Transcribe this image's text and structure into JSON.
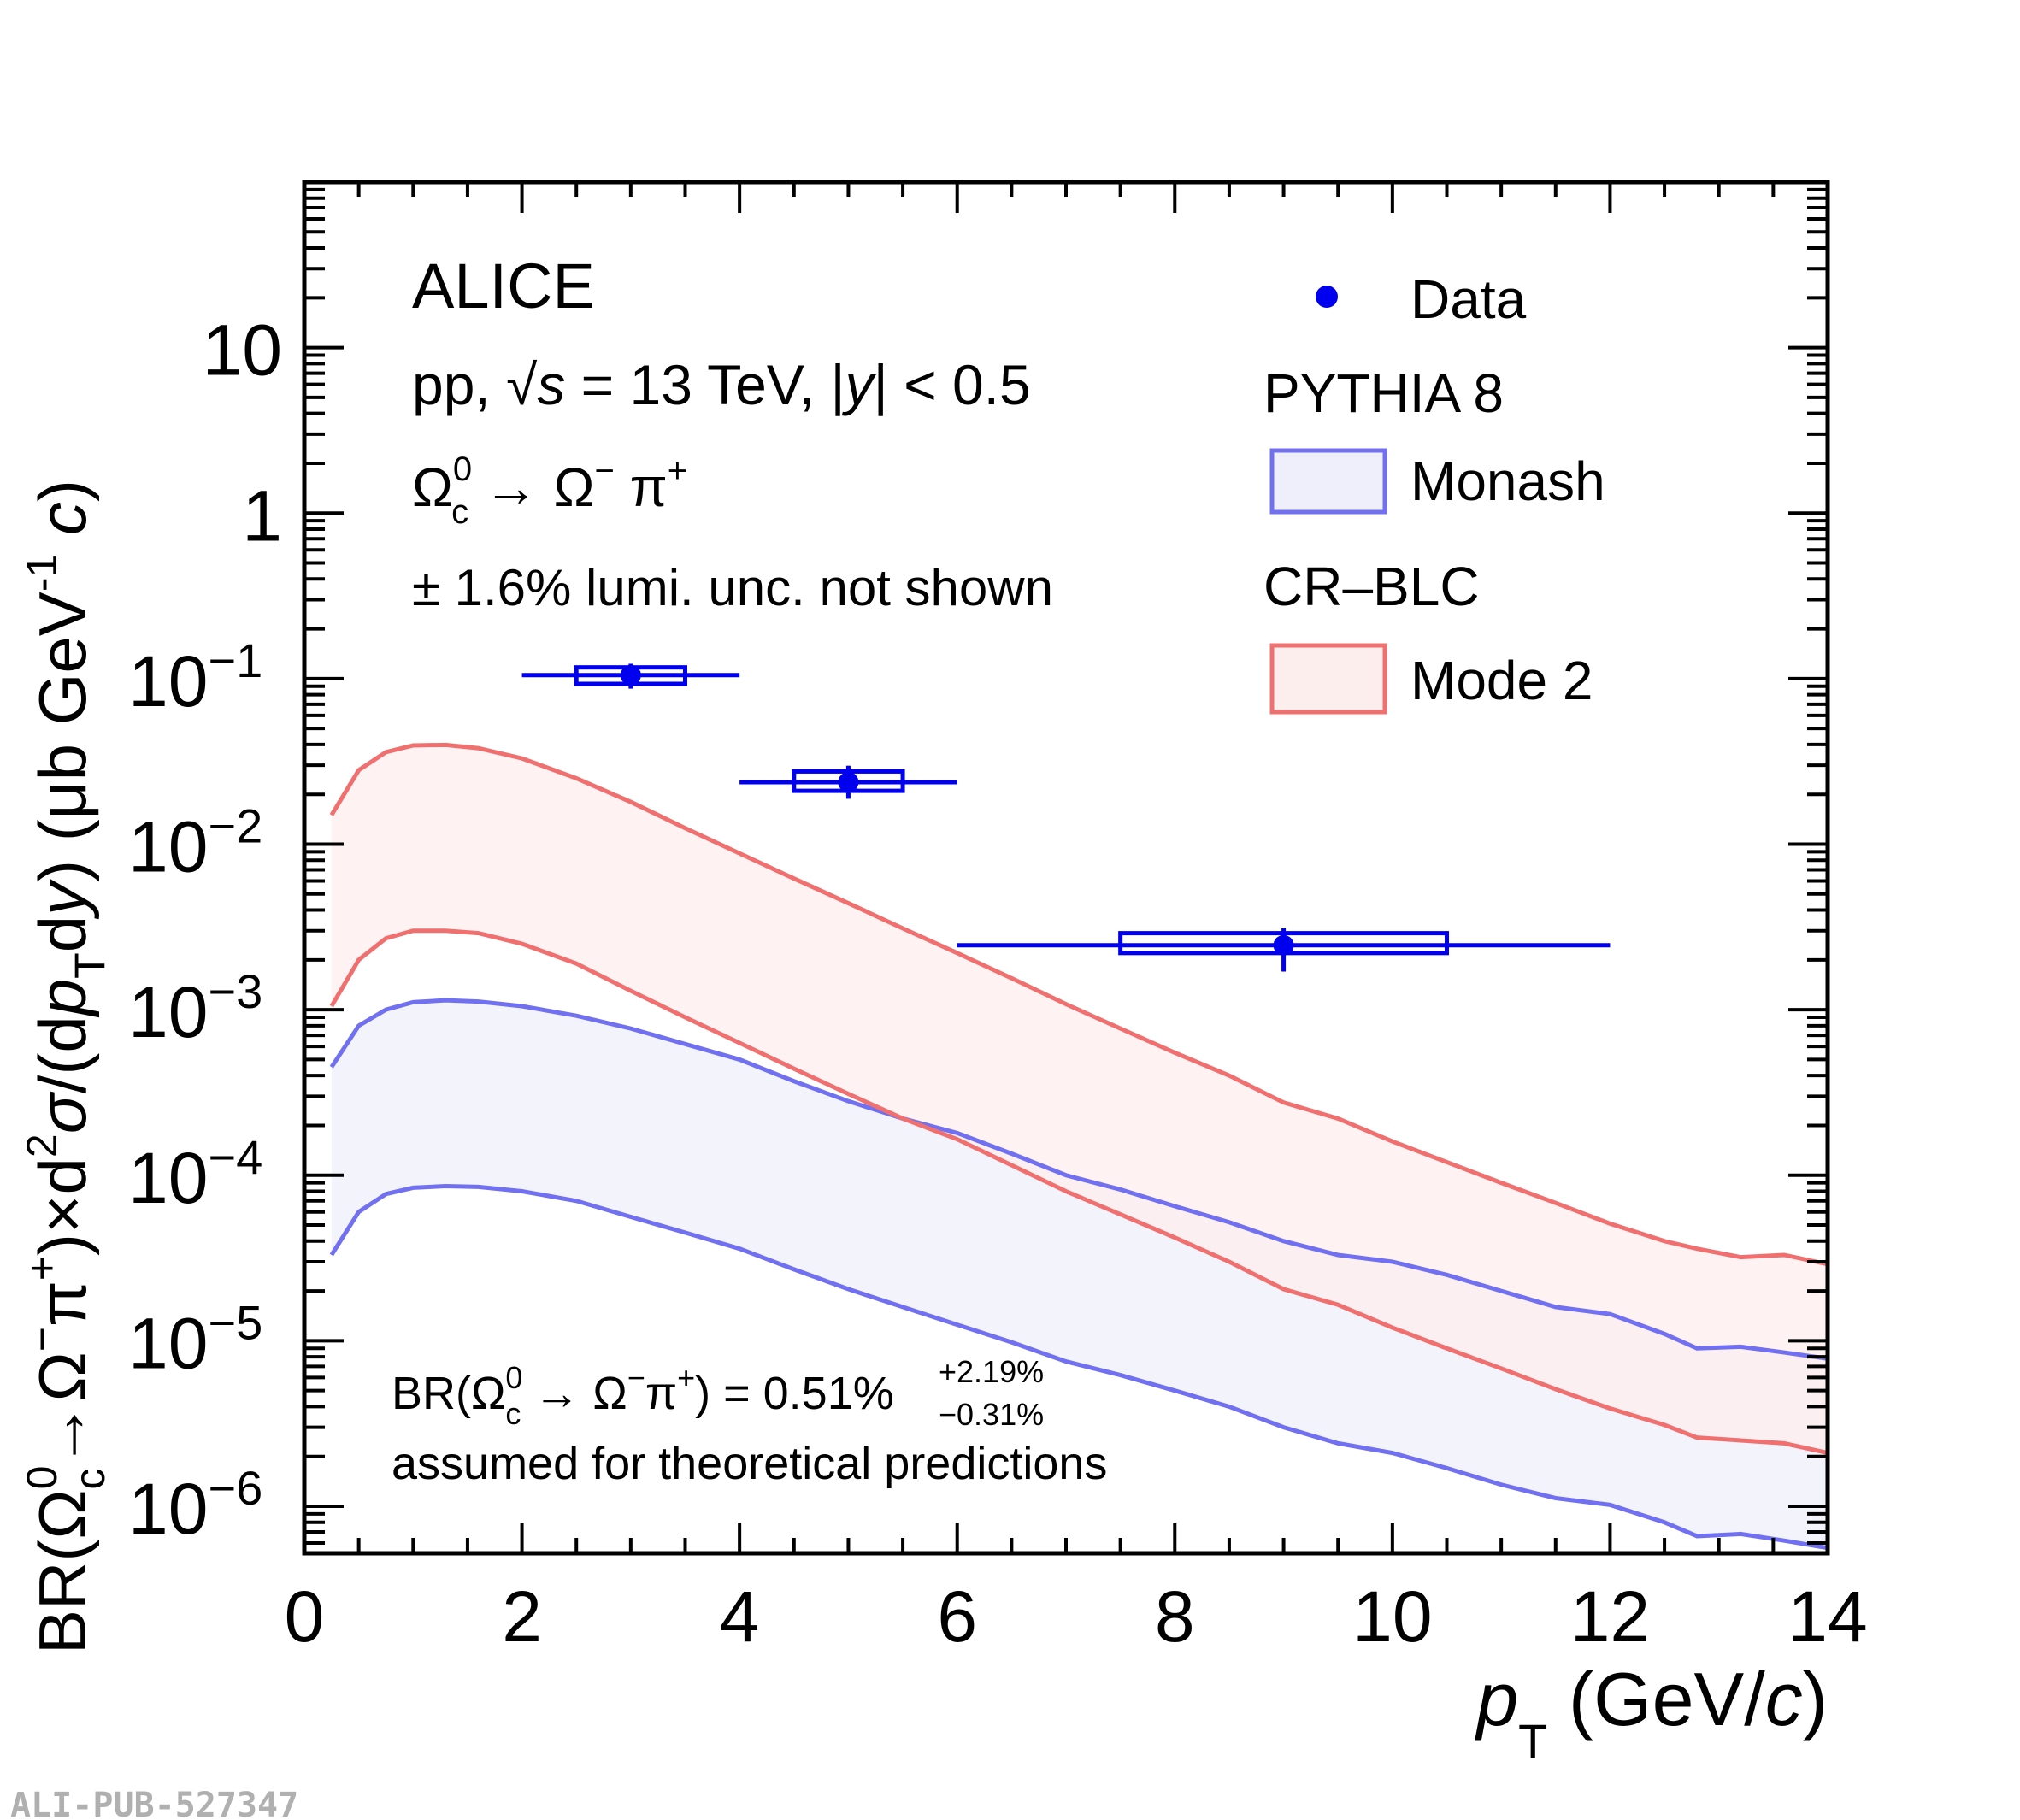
{
  "chart_data": {
    "type": "scatter",
    "xlabel": "p_T (GeV/c)",
    "ylabel": "BR(Ω_c^0→Ω^−π^+)×d^2σ/(dp_T dy) (μb GeV^-1 c)",
    "xlim": [
      0,
      14
    ],
    "ylim": [
      5.2e-07,
      100
    ],
    "yscale": "log",
    "x_ticks": [
      0,
      2,
      4,
      6,
      8,
      10,
      12,
      14
    ],
    "y_ticks": [
      {
        "value": 1e-06,
        "label": "10",
        "exp": "−6"
      },
      {
        "value": 1e-05,
        "label": "10",
        "exp": "−5"
      },
      {
        "value": 0.0001,
        "label": "10",
        "exp": "−4"
      },
      {
        "value": 0.001,
        "label": "10",
        "exp": "−3"
      },
      {
        "value": 0.01,
        "label": "10",
        "exp": "−2"
      },
      {
        "value": 0.1,
        "label": "10",
        "exp": "−1"
      },
      {
        "value": 1,
        "label": "1",
        "exp": ""
      },
      {
        "value": 10,
        "label": "10",
        "exp": ""
      }
    ],
    "series": [
      {
        "name": "Data",
        "color": "#0000ee",
        "points": [
          {
            "x": 3,
            "y": 0.105,
            "xlow": 2,
            "xhigh": 4,
            "ylow": 0.087,
            "yhigh": 0.123,
            "syslow": 0.093,
            "syshigh": 0.117,
            "boxhalf": 0.5
          },
          {
            "x": 5,
            "y": 0.0237,
            "xlow": 4,
            "xhigh": 6,
            "ylow": 0.0188,
            "yhigh": 0.0298,
            "syslow": 0.021,
            "syshigh": 0.0275,
            "boxhalf": 0.5
          },
          {
            "x": 9,
            "y": 0.00245,
            "xlow": 6,
            "xhigh": 12,
            "ylow": 0.0017,
            "yhigh": 0.0031,
            "syslow": 0.0022,
            "syshigh": 0.0029,
            "boxhalf": 1.5
          }
        ]
      },
      {
        "name": "Monash",
        "color": "#7070f0",
        "fill": "#efeffb",
        "x": [
          0.25,
          0.5,
          0.75,
          1.0,
          1.3,
          1.6,
          2,
          2.5,
          3,
          3.5,
          4,
          4.5,
          5,
          5.5,
          6,
          6.5,
          7,
          7.5,
          8,
          8.5,
          9,
          9.5,
          10,
          10.5,
          11,
          11.5,
          12,
          12.5,
          12.8,
          13.2,
          13.6,
          14
        ],
        "upper": [
          0.00045,
          0.0008,
          0.001,
          0.00111,
          0.00114,
          0.00112,
          0.00105,
          0.00092,
          0.00077,
          0.00062,
          0.0005,
          0.00037,
          0.00028,
          0.00022,
          0.00018,
          0.000135,
          0.0001,
          8.2e-05,
          6.5e-05,
          5.2e-05,
          4e-05,
          3.3e-05,
          3e-05,
          2.5e-05,
          2e-05,
          1.6e-05,
          1.45e-05,
          1.1e-05,
          9e-06,
          9.2e-06,
          8.5e-06,
          7.8e-06
        ],
        "lower": [
          3.3e-05,
          6e-05,
          7.7e-05,
          8.4e-05,
          8.6e-05,
          8.5e-05,
          8e-05,
          7e-05,
          5.6e-05,
          4.5e-05,
          3.6e-05,
          2.7e-05,
          2.05e-05,
          1.6e-05,
          1.25e-05,
          9.8e-06,
          7.5e-06,
          6.2e-06,
          5e-06,
          4e-06,
          3e-06,
          2.4e-06,
          2.1e-06,
          1.7e-06,
          1.35e-06,
          1.12e-06,
          1.02e-06,
          8e-07,
          6.6e-07,
          6.8e-07,
          6.2e-07,
          5.6e-07
        ]
      },
      {
        "name": "Mode 2",
        "group": "CR–BLC",
        "color": "#f07070",
        "fill": "#fdeeee",
        "x": [
          0.25,
          0.5,
          0.75,
          1.0,
          1.3,
          1.6,
          2,
          2.5,
          3,
          3.5,
          4,
          4.5,
          5,
          5.5,
          6,
          6.5,
          7,
          7.5,
          8,
          8.5,
          9,
          9.5,
          10,
          10.5,
          11,
          11.5,
          12,
          12.5,
          12.8,
          13.2,
          13.6,
          14
        ],
        "upper": [
          0.015,
          0.028,
          0.036,
          0.0395,
          0.0398,
          0.038,
          0.033,
          0.025,
          0.018,
          0.0125,
          0.0088,
          0.0062,
          0.0044,
          0.0031,
          0.0022,
          0.00155,
          0.00108,
          0.00077,
          0.00055,
          0.0004,
          0.000275,
          0.00022,
          0.00016,
          0.00012,
          9e-05,
          6.8e-05,
          5.1e-05,
          4e-05,
          3.6e-05,
          3.2e-05,
          3.3e-05,
          2.9e-05
        ],
        "lower": [
          0.00105,
          0.002,
          0.0027,
          0.003,
          0.003,
          0.0029,
          0.0025,
          0.0019,
          0.0013,
          0.0009,
          0.00063,
          0.00044,
          0.00031,
          0.00022,
          0.000165,
          0.000115,
          8e-05,
          5.8e-05,
          4.2e-05,
          3e-05,
          2.05e-05,
          1.65e-05,
          1.2e-05,
          9e-06,
          6.8e-06,
          5.1e-06,
          3.9e-06,
          3.1e-06,
          2.6e-06,
          2.5e-06,
          2.4e-06,
          2.1e-06
        ]
      }
    ],
    "annotations": {
      "experiment": "ALICE",
      "system_prefix": "pp, ",
      "sqrt": "√",
      "s_var": "s",
      "system_mid": " = 13 TeV, |",
      "y_var": "y",
      "system_suffix": "| < 0.5",
      "decay_lhs": "Ω",
      "decay_lhs_sup": "0",
      "decay_lhs_sub": "c",
      "decay_arrow": " → Ω",
      "decay_omega_sup": "−",
      "decay_pi": " π",
      "decay_pi_sup": "+",
      "lumi": "± 1.6% lumi. unc. not shown",
      "br_prefix": "BR(Ω",
      "br_sup0": "0",
      "br_subc": "c",
      "br_mid": " → Ω",
      "br_omega_sup": "−",
      "br_pi": "π",
      "br_pi_sup": "+",
      "br_value": ") = 0.51%",
      "br_err_up": "+2.19%",
      "br_err_down": "−0.31%",
      "br_note": "assumed for theoretical predictions",
      "watermark": "ALI-PUB-527347"
    },
    "legend": {
      "data": "Data",
      "pythia": "PYTHIA 8",
      "monash": "Monash",
      "crblc": "CR–BLC",
      "mode2": "Mode 2"
    },
    "axis_text": {
      "x_var": "p",
      "x_sub": "T",
      "x_unit": " (GeV/",
      "x_c": "c",
      "x_close": ")",
      "y_br": "BR(Ω",
      "y_br_sup": "0",
      "y_br_sub": "c",
      "y_arrow": "→Ω",
      "y_omega_sup": "−",
      "y_pi": "π",
      "y_pi_sup": "+",
      "y_times": ")×d",
      "y_sq": "2",
      "y_sigma": "σ",
      "y_slash": "/(d",
      "y_p": "p",
      "y_T": "T",
      "y_d": "d",
      "y_y": "y",
      "y_unit": ") (μb GeV",
      "y_inv": "-1",
      "y_space": " ",
      "y_c": "c",
      "y_close": ")"
    }
  }
}
